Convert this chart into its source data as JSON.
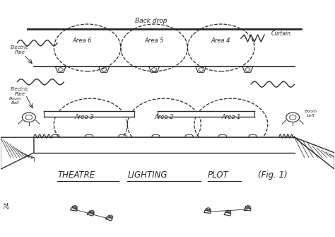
{
  "bg_color": "#ffffff",
  "line_color": "#2a2a2a",
  "title_theatre": "THEATRE",
  "title_lighting": "LIGHTING",
  "title_plot": "PLOT",
  "fig_label": "(Fig. 1)",
  "backdrop_label": "Back drop",
  "curtain_label": "Curtain",
  "electric_pipe_label1": "Electric\nPipe",
  "electric_pipe_label2": "Electric\nPipe",
  "boom_ball_label": "Boom\nBall",
  "boom_left_label": "Boom\nLeft",
  "areas_top": [
    "Area 6",
    "Area 5",
    "Area 4"
  ],
  "areas_bottom": [
    "Area 3",
    "Area 2",
    "Area 1"
  ],
  "page_number": "24",
  "figw": 4.74,
  "figh": 3.35,
  "dpi": 100
}
